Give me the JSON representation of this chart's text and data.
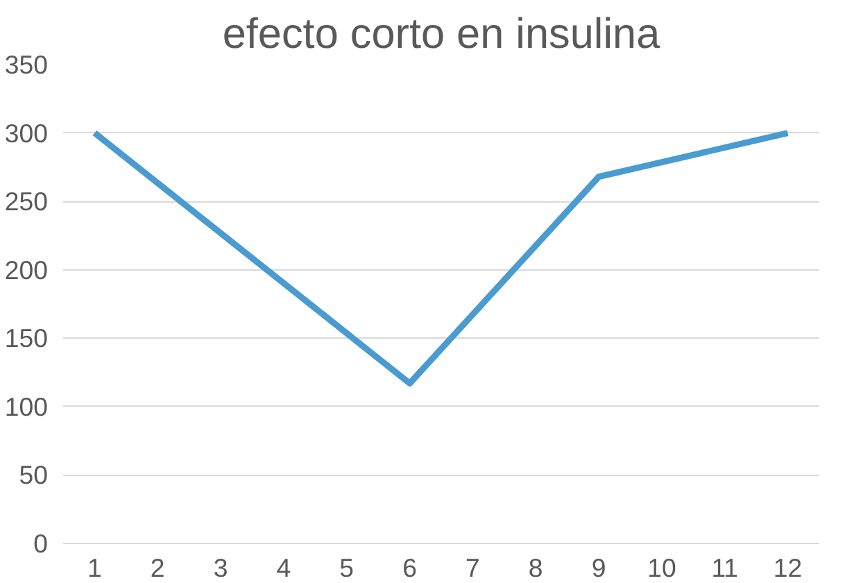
{
  "chart_data": {
    "type": "line",
    "title": "efecto corto en insulina",
    "x": [
      1,
      6,
      9,
      12
    ],
    "series": [
      {
        "color": "#4a9bd0",
        "values": [
          300,
          117,
          268,
          300
        ]
      }
    ],
    "xlim": [
      0.5,
      12.5
    ],
    "xticks": [
      1,
      2,
      3,
      4,
      5,
      6,
      7,
      8,
      9,
      10,
      11,
      12
    ],
    "ylim": [
      0,
      350
    ],
    "yticks": [
      0,
      50,
      100,
      150,
      200,
      250,
      300,
      350
    ],
    "grid": "y",
    "marker": "none",
    "line_style": "solid"
  }
}
